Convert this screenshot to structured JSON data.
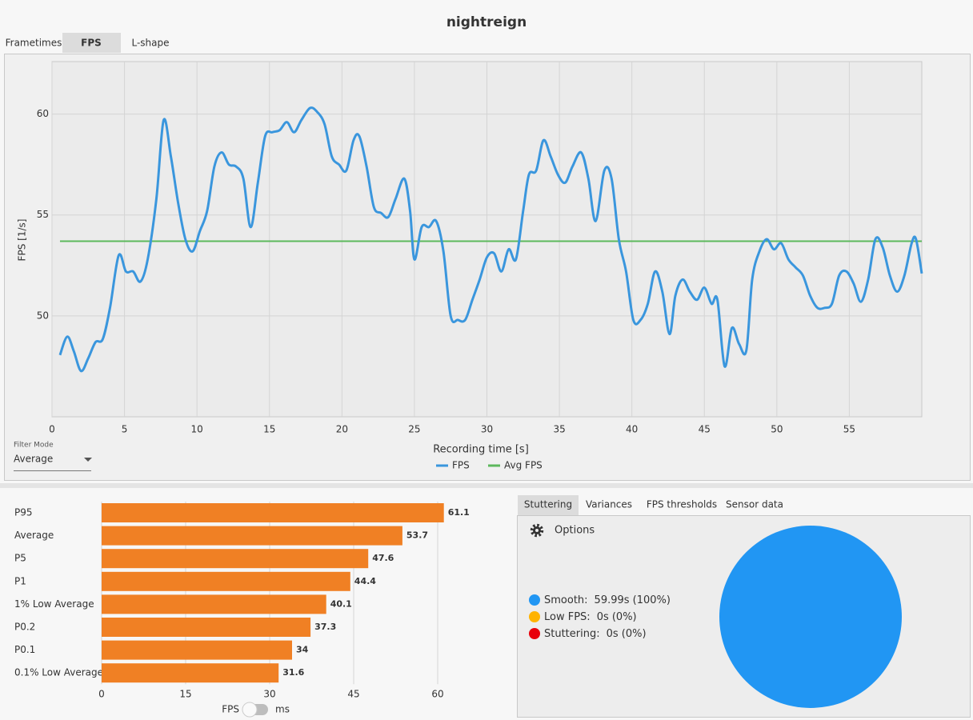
{
  "header": {
    "title": "nightreign"
  },
  "tabs": [
    "Frametimes",
    "FPS",
    "L-shape"
  ],
  "line_chart": {
    "type": "line",
    "x_label": "Recording time [s]",
    "y_label": "FPS [1/s]",
    "xlim": [
      0,
      60
    ],
    "ylim": [
      45,
      62.6
    ],
    "xticks": [
      0,
      5,
      10,
      15,
      20,
      25,
      30,
      35,
      40,
      45,
      50,
      55
    ],
    "yticks": [
      50,
      55,
      60
    ],
    "grid": true,
    "legend": "bottom",
    "series": [
      {
        "name": "FPS",
        "color": "#3a96dd",
        "x": [
          0.55,
          1.05,
          1.5,
          2.0,
          2.5,
          3.0,
          3.5,
          4.0,
          4.6,
          5.1,
          5.6,
          6.1,
          6.6,
          7.2,
          7.7,
          8.2,
          8.7,
          9.2,
          9.7,
          10.2,
          10.7,
          11.2,
          11.7,
          12.2,
          12.7,
          13.2,
          13.7,
          14.2,
          14.7,
          15.2,
          15.7,
          16.2,
          16.7,
          17.2,
          17.8,
          18.3,
          18.8,
          19.3,
          19.8,
          20.3,
          20.8,
          21.2,
          21.7,
          22.2,
          22.7,
          23.2,
          23.7,
          24.3,
          24.7,
          25.0,
          25.5,
          26.0,
          26.5,
          27.0,
          27.5,
          28.0,
          28.5,
          29.0,
          29.5,
          30.0,
          30.5,
          31.0,
          31.5,
          32.0,
          32.5,
          32.9,
          33.4,
          33.9,
          34.4,
          34.9,
          35.4,
          35.9,
          36.5,
          37.0,
          37.5,
          38.1,
          38.6,
          39.1,
          39.6,
          40.1,
          40.6,
          41.1,
          41.6,
          42.1,
          42.6,
          43.0,
          43.5,
          44.0,
          44.5,
          45.0,
          45.5,
          45.9,
          46.4,
          46.9,
          47.4,
          47.9,
          48.3,
          48.8,
          49.3,
          49.8,
          50.3,
          50.8,
          51.3,
          51.8,
          52.3,
          52.8,
          53.3,
          53.8,
          54.3,
          54.8,
          55.3,
          55.8,
          56.3,
          56.8,
          57.3,
          57.8,
          58.3,
          58.8,
          59.3,
          59.6,
          60.0
        ],
        "values": [
          48.06,
          48.97,
          48.26,
          47.27,
          47.9,
          48.7,
          48.85,
          50.4,
          53.0,
          52.2,
          52.2,
          51.7,
          52.8,
          55.8,
          59.7,
          57.9,
          55.6,
          53.8,
          53.2,
          54.2,
          55.2,
          57.4,
          58.1,
          57.5,
          57.4,
          56.8,
          54.4,
          56.6,
          58.9,
          59.1,
          59.2,
          59.6,
          59.1,
          59.7,
          60.3,
          60.1,
          59.5,
          57.9,
          57.5,
          57.2,
          58.7,
          58.9,
          57.4,
          55.4,
          55.1,
          54.9,
          55.8,
          56.8,
          55.2,
          52.8,
          54.4,
          54.4,
          54.7,
          53.2,
          50.0,
          49.8,
          49.8,
          50.8,
          51.8,
          52.9,
          53.1,
          52.2,
          53.3,
          52.8,
          55.2,
          57.0,
          57.2,
          58.7,
          57.9,
          57.0,
          56.6,
          57.4,
          58.1,
          56.8,
          54.7,
          57.2,
          56.8,
          53.8,
          52.2,
          49.8,
          49.8,
          50.6,
          52.2,
          51.2,
          49.1,
          51.0,
          51.8,
          51.2,
          50.8,
          51.4,
          50.6,
          50.8,
          47.5,
          49.4,
          48.6,
          48.3,
          51.8,
          53.2,
          53.8,
          53.3,
          53.6,
          52.8,
          52.4,
          52.0,
          51.0,
          50.4,
          50.4,
          50.6,
          52.0,
          52.2,
          51.6,
          50.7,
          51.8,
          53.8,
          53.4,
          52.0,
          51.2,
          52.0,
          53.6,
          53.8,
          52.1
        ]
      },
      {
        "name": "Avg FPS",
        "color": "#5cb85c",
        "x": [
          0.55,
          60
        ],
        "values": [
          53.7,
          53.7
        ]
      }
    ]
  },
  "filter": {
    "label": "Filter Mode",
    "value": "Average"
  },
  "bar_chart": {
    "type": "bar",
    "orientation": "horizontal",
    "categories": [
      "P95",
      "Average",
      "P5",
      "P1",
      "1% Low Average",
      "P0.2",
      "P0.1",
      "0.1% Low Average"
    ],
    "values": [
      61.1,
      53.7,
      47.6,
      44.4,
      40.1,
      37.3,
      34,
      31.6
    ],
    "color": "#f08024",
    "xlim": [
      0,
      62
    ],
    "xticks": [
      0,
      15,
      30,
      45,
      60
    ],
    "grid": true,
    "toggle": [
      "FPS",
      "ms"
    ]
  },
  "stutter_tabs": [
    "Stuttering",
    "Variances",
    "FPS thresholds",
    "Sensor data"
  ],
  "options": "Options",
  "pie_chart": {
    "type": "pie",
    "categories": [
      "Smooth:",
      "Low FPS:",
      "Stuttering:"
    ],
    "values": [
      59.99,
      0,
      0
    ],
    "value_labels": [
      "59.99s (100%)",
      "0s (0%)",
      "0s (0%)"
    ],
    "colors": [
      "#2196f3",
      "#ffb300",
      "#e8000b"
    ]
  }
}
